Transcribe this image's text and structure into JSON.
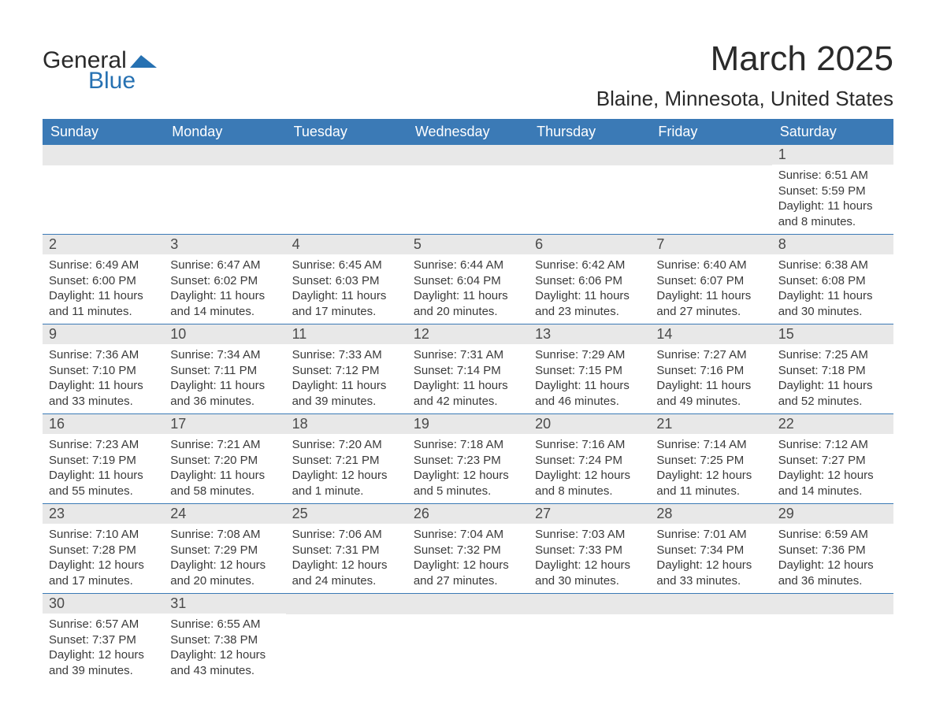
{
  "logo": {
    "word1": "General",
    "word2": "Blue",
    "mark_color": "#2671b2",
    "text_color": "#2a2a2a"
  },
  "title": "March 2025",
  "subtitle": "Blaine, Minnesota, United States",
  "colors": {
    "header_bg": "#3b7ab6",
    "header_fg": "#ffffff",
    "daybar_bg": "#e8e8e8",
    "row_divider": "#3b7ab6",
    "text": "#3a3a3a",
    "background": "#ffffff"
  },
  "weekday_labels": [
    "Sunday",
    "Monday",
    "Tuesday",
    "Wednesday",
    "Thursday",
    "Friday",
    "Saturday"
  ],
  "weeks": [
    [
      null,
      null,
      null,
      null,
      null,
      null,
      {
        "n": "1",
        "sunrise": "6:51 AM",
        "sunset": "5:59 PM",
        "daylight": "11 hours and 8 minutes."
      }
    ],
    [
      {
        "n": "2",
        "sunrise": "6:49 AM",
        "sunset": "6:00 PM",
        "daylight": "11 hours and 11 minutes."
      },
      {
        "n": "3",
        "sunrise": "6:47 AM",
        "sunset": "6:02 PM",
        "daylight": "11 hours and 14 minutes."
      },
      {
        "n": "4",
        "sunrise": "6:45 AM",
        "sunset": "6:03 PM",
        "daylight": "11 hours and 17 minutes."
      },
      {
        "n": "5",
        "sunrise": "6:44 AM",
        "sunset": "6:04 PM",
        "daylight": "11 hours and 20 minutes."
      },
      {
        "n": "6",
        "sunrise": "6:42 AM",
        "sunset": "6:06 PM",
        "daylight": "11 hours and 23 minutes."
      },
      {
        "n": "7",
        "sunrise": "6:40 AM",
        "sunset": "6:07 PM",
        "daylight": "11 hours and 27 minutes."
      },
      {
        "n": "8",
        "sunrise": "6:38 AM",
        "sunset": "6:08 PM",
        "daylight": "11 hours and 30 minutes."
      }
    ],
    [
      {
        "n": "9",
        "sunrise": "7:36 AM",
        "sunset": "7:10 PM",
        "daylight": "11 hours and 33 minutes."
      },
      {
        "n": "10",
        "sunrise": "7:34 AM",
        "sunset": "7:11 PM",
        "daylight": "11 hours and 36 minutes."
      },
      {
        "n": "11",
        "sunrise": "7:33 AM",
        "sunset": "7:12 PM",
        "daylight": "11 hours and 39 minutes."
      },
      {
        "n": "12",
        "sunrise": "7:31 AM",
        "sunset": "7:14 PM",
        "daylight": "11 hours and 42 minutes."
      },
      {
        "n": "13",
        "sunrise": "7:29 AM",
        "sunset": "7:15 PM",
        "daylight": "11 hours and 46 minutes."
      },
      {
        "n": "14",
        "sunrise": "7:27 AM",
        "sunset": "7:16 PM",
        "daylight": "11 hours and 49 minutes."
      },
      {
        "n": "15",
        "sunrise": "7:25 AM",
        "sunset": "7:18 PM",
        "daylight": "11 hours and 52 minutes."
      }
    ],
    [
      {
        "n": "16",
        "sunrise": "7:23 AM",
        "sunset": "7:19 PM",
        "daylight": "11 hours and 55 minutes."
      },
      {
        "n": "17",
        "sunrise": "7:21 AM",
        "sunset": "7:20 PM",
        "daylight": "11 hours and 58 minutes."
      },
      {
        "n": "18",
        "sunrise": "7:20 AM",
        "sunset": "7:21 PM",
        "daylight": "12 hours and 1 minute."
      },
      {
        "n": "19",
        "sunrise": "7:18 AM",
        "sunset": "7:23 PM",
        "daylight": "12 hours and 5 minutes."
      },
      {
        "n": "20",
        "sunrise": "7:16 AM",
        "sunset": "7:24 PM",
        "daylight": "12 hours and 8 minutes."
      },
      {
        "n": "21",
        "sunrise": "7:14 AM",
        "sunset": "7:25 PM",
        "daylight": "12 hours and 11 minutes."
      },
      {
        "n": "22",
        "sunrise": "7:12 AM",
        "sunset": "7:27 PM",
        "daylight": "12 hours and 14 minutes."
      }
    ],
    [
      {
        "n": "23",
        "sunrise": "7:10 AM",
        "sunset": "7:28 PM",
        "daylight": "12 hours and 17 minutes."
      },
      {
        "n": "24",
        "sunrise": "7:08 AM",
        "sunset": "7:29 PM",
        "daylight": "12 hours and 20 minutes."
      },
      {
        "n": "25",
        "sunrise": "7:06 AM",
        "sunset": "7:31 PM",
        "daylight": "12 hours and 24 minutes."
      },
      {
        "n": "26",
        "sunrise": "7:04 AM",
        "sunset": "7:32 PM",
        "daylight": "12 hours and 27 minutes."
      },
      {
        "n": "27",
        "sunrise": "7:03 AM",
        "sunset": "7:33 PM",
        "daylight": "12 hours and 30 minutes."
      },
      {
        "n": "28",
        "sunrise": "7:01 AM",
        "sunset": "7:34 PM",
        "daylight": "12 hours and 33 minutes."
      },
      {
        "n": "29",
        "sunrise": "6:59 AM",
        "sunset": "7:36 PM",
        "daylight": "12 hours and 36 minutes."
      }
    ],
    [
      {
        "n": "30",
        "sunrise": "6:57 AM",
        "sunset": "7:37 PM",
        "daylight": "12 hours and 39 minutes."
      },
      {
        "n": "31",
        "sunrise": "6:55 AM",
        "sunset": "7:38 PM",
        "daylight": "12 hours and 43 minutes."
      },
      null,
      null,
      null,
      null,
      null
    ]
  ],
  "labels": {
    "sunrise_prefix": "Sunrise: ",
    "sunset_prefix": "Sunset: ",
    "daylight_prefix": "Daylight: "
  }
}
